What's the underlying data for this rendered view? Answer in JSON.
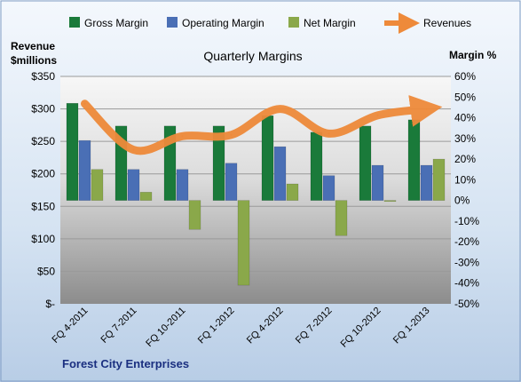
{
  "chart_data": {
    "type": "bar",
    "title": "Quarterly Margins",
    "left_axis_label_line1": "Revenue",
    "left_axis_label_line2": "$millions",
    "right_axis_label": "Margin %",
    "footer": "Forest City Enterprises",
    "categories": [
      "FQ 4-2011",
      "FQ 7-2011",
      "FQ 10-2011",
      "FQ 1-2012",
      "FQ 4-2012",
      "FQ 7-2012",
      "FQ 10-2012",
      "FQ 1-2013"
    ],
    "left_axis": {
      "min": 0,
      "max": 350,
      "step": 50,
      "tick_labels": [
        "$-",
        "$50",
        "$100",
        "$150",
        "$200",
        "$250",
        "$300",
        "$350"
      ]
    },
    "right_axis": {
      "min": -50,
      "max": 60,
      "step": 10,
      "tick_labels": [
        "-50%",
        "-40%",
        "-30%",
        "-20%",
        "-10%",
        "0%",
        "10%",
        "20%",
        "30%",
        "40%",
        "50%",
        "60%"
      ]
    },
    "series": [
      {
        "name": "Gross Margin",
        "axis": "right",
        "kind": "bar",
        "color": "#1a7a3a",
        "values": [
          47,
          36,
          36,
          36,
          41,
          33,
          36,
          39
        ]
      },
      {
        "name": "Operating Margin",
        "axis": "right",
        "kind": "bar",
        "color": "#4a6fb5",
        "values": [
          29,
          15,
          15,
          18,
          26,
          12,
          17,
          17
        ]
      },
      {
        "name": "Net Margin",
        "axis": "right",
        "kind": "bar",
        "color": "#8aa84a",
        "values": [
          15,
          4,
          -14,
          -41,
          8,
          -17,
          -0.5,
          20
        ]
      },
      {
        "name": "Revenues",
        "axis": "left",
        "kind": "line",
        "color": "#ee8a3a",
        "values": [
          308,
          237,
          258,
          260,
          300,
          262,
          290,
          300
        ]
      }
    ],
    "legend_position": "top",
    "grid": true
  }
}
